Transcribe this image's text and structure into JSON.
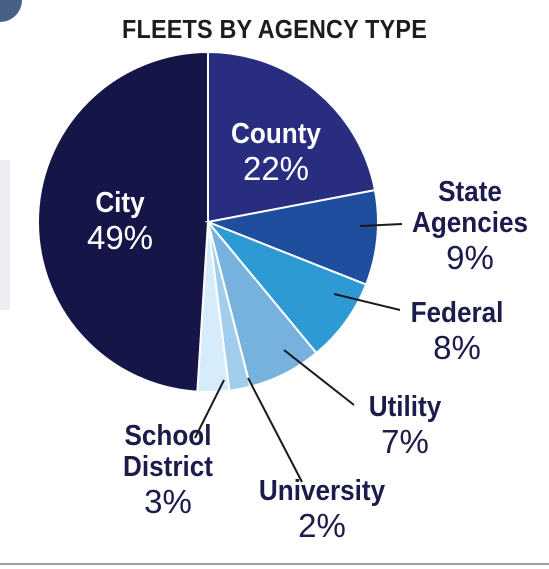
{
  "chart_data": {
    "type": "pie",
    "title": "FLEETS BY AGENCY TYPE",
    "slices": [
      {
        "label": [
          "City"
        ],
        "value": 49,
        "value_label": "49%",
        "color": "#151547",
        "label_color": "#ffffff"
      },
      {
        "label": [
          "County"
        ],
        "value": 22,
        "value_label": "22%",
        "color": "#282d7f",
        "label_color": "#ffffff"
      },
      {
        "label": [
          "State",
          "Agencies"
        ],
        "value": 9,
        "value_label": "9%",
        "color": "#1f4e9f",
        "label_color": "#1c1c4c"
      },
      {
        "label": [
          "Federal"
        ],
        "value": 8,
        "value_label": "8%",
        "color": "#2d9ad4",
        "label_color": "#1c1c4c"
      },
      {
        "label": [
          "Utility"
        ],
        "value": 7,
        "value_label": "7%",
        "color": "#77b2df",
        "label_color": "#1c1c4c"
      },
      {
        "label": [
          "University"
        ],
        "value": 2,
        "value_label": "2%",
        "color": "#a2ceee",
        "label_color": "#1c1c4c"
      },
      {
        "label": [
          "School",
          "District"
        ],
        "value": 3,
        "value_label": "3%",
        "color": "#d7ecfa",
        "label_color": "#1c1c4c"
      }
    ]
  }
}
